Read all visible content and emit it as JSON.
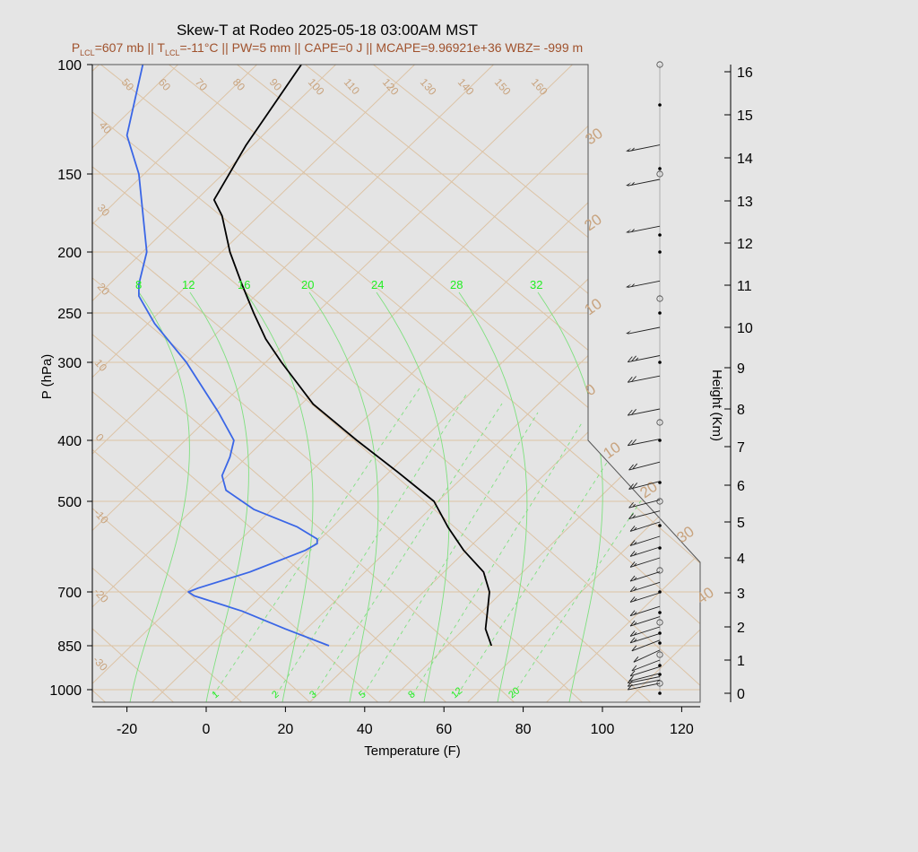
{
  "chart_data": {
    "type": "line",
    "title": "Skew-T at Rodeo 2025-05-18 03:00AM MST",
    "subtitle": {
      "p_lcl": "607 mb",
      "t_lcl": "-11°C",
      "pw": "5 mm",
      "cape": "0 J",
      "mcape": "9.96921e+36",
      "wbz": "-999 m"
    },
    "xlabel": "Temperature (F)",
    "ylabel": "P (hPa)",
    "y2label": "Height (Km)",
    "x_ticks": [
      -20,
      0,
      20,
      40,
      60,
      80,
      100,
      120
    ],
    "p_ticks": [
      100,
      150,
      200,
      250,
      300,
      400,
      500,
      700,
      850,
      1000
    ],
    "height_ticks": [
      0,
      1,
      2,
      3,
      4,
      5,
      6,
      7,
      8,
      9,
      10,
      11,
      12,
      13,
      14,
      15,
      16
    ],
    "isotherm_labels": [
      "50",
      "60",
      "70",
      "80",
      "90",
      "100",
      "110",
      "120",
      "130",
      "140",
      "150",
      "160"
    ],
    "left_labels": [
      "40",
      "30",
      "20",
      "10",
      "0",
      "-10",
      "-20",
      "-30"
    ],
    "adiabat_labels": [
      "30",
      "20",
      "10",
      "0",
      "10",
      "20",
      "30",
      "40"
    ],
    "mixing_ratio_top": [
      "8",
      "12",
      "16",
      "20",
      "24",
      "28",
      "32"
    ],
    "mixing_ratio_bottom": [
      "1",
      "2",
      "3",
      "5",
      "8",
      "12",
      "20"
    ],
    "series": [
      {
        "name": "",
        "color": "#000000",
        "points": [
          [
            72.0,
            850
          ],
          [
            70.5,
            800
          ],
          [
            71.0,
            750
          ],
          [
            71.5,
            700
          ],
          [
            70.0,
            650
          ],
          [
            65.0,
            600
          ],
          [
            61.0,
            550
          ],
          [
            57.5,
            500
          ],
          [
            48.5,
            450
          ],
          [
            38.0,
            400
          ],
          [
            27.0,
            350
          ],
          [
            19.0,
            300
          ],
          [
            15.0,
            275
          ],
          [
            12.0,
            250
          ],
          [
            9.0,
            225
          ],
          [
            6.0,
            200
          ],
          [
            4.0,
            175
          ],
          [
            2.0,
            165
          ],
          [
            10.0,
            135
          ],
          [
            24.0,
            100
          ]
        ]
      },
      {
        "name": "",
        "color": "#3a66e6",
        "points": [
          [
            31.0,
            850
          ],
          [
            20.0,
            800
          ],
          [
            9.0,
            750
          ],
          [
            -3.0,
            710
          ],
          [
            -4.5,
            700
          ],
          [
            -2.0,
            690
          ],
          [
            11.0,
            650
          ],
          [
            25.0,
            600
          ],
          [
            28.0,
            585
          ],
          [
            28.0,
            575
          ],
          [
            23.0,
            550
          ],
          [
            12.0,
            515
          ],
          [
            5.0,
            480
          ],
          [
            4.0,
            455
          ],
          [
            6.0,
            425
          ],
          [
            7.0,
            400
          ],
          [
            3.0,
            360
          ],
          [
            -5.0,
            300
          ],
          [
            -13.0,
            260
          ],
          [
            -17.0,
            235
          ],
          [
            -17.0,
            225
          ],
          [
            -15.0,
            200
          ],
          [
            -17.0,
            150
          ],
          [
            -20.0,
            130
          ],
          [
            -16.0,
            100
          ]
        ]
      }
    ],
    "wind_barbs": [
      {
        "height_km": 0.3,
        "speed": 10,
        "dir": 250
      },
      {
        "height_km": 0.4,
        "speed": 10,
        "dir": 250
      },
      {
        "height_km": 0.5,
        "speed": 10,
        "dir": 250
      },
      {
        "height_km": 0.6,
        "speed": 10,
        "dir": 245
      },
      {
        "height_km": 0.8,
        "speed": 10,
        "dir": 240
      },
      {
        "height_km": 1.0,
        "speed": 10,
        "dir": 235
      },
      {
        "height_km": 1.3,
        "speed": 10,
        "dir": 230
      },
      {
        "height_km": 1.6,
        "speed": 10,
        "dir": 235
      },
      {
        "height_km": 1.8,
        "speed": 15,
        "dir": 240
      },
      {
        "height_km": 2.0,
        "speed": 15,
        "dir": 240
      },
      {
        "height_km": 2.3,
        "speed": 15,
        "dir": 240
      },
      {
        "height_km": 2.6,
        "speed": 15,
        "dir": 240
      },
      {
        "height_km": 3.0,
        "speed": 15,
        "dir": 240
      },
      {
        "height_km": 3.3,
        "speed": 15,
        "dir": 240
      },
      {
        "height_km": 3.6,
        "speed": 15,
        "dir": 240
      },
      {
        "height_km": 4.0,
        "speed": 15,
        "dir": 240
      },
      {
        "height_km": 4.3,
        "speed": 15,
        "dir": 240
      },
      {
        "height_km": 4.6,
        "speed": 15,
        "dir": 240
      },
      {
        "height_km": 5.0,
        "speed": 15,
        "dir": 240
      },
      {
        "height_km": 5.3,
        "speed": 15,
        "dir": 245
      },
      {
        "height_km": 5.6,
        "speed": 15,
        "dir": 245
      },
      {
        "height_km": 6.1,
        "speed": 20,
        "dir": 245
      },
      {
        "height_km": 6.6,
        "speed": 20,
        "dir": 245
      },
      {
        "height_km": 7.2,
        "speed": 20,
        "dir": 250
      },
      {
        "height_km": 8.0,
        "speed": 20,
        "dir": 250
      },
      {
        "height_km": 8.8,
        "speed": 20,
        "dir": 250
      },
      {
        "height_km": 9.3,
        "speed": 25,
        "dir": 250
      },
      {
        "height_km": 10.0,
        "speed": 50,
        "dir": 250
      },
      {
        "height_km": 11.1,
        "speed": 55,
        "dir": 250
      },
      {
        "height_km": 12.4,
        "speed": 55,
        "dir": 250
      },
      {
        "height_km": 13.5,
        "speed": 55,
        "dir": 250
      },
      {
        "height_km": 14.3,
        "speed": 55,
        "dir": 250
      }
    ],
    "grid": true
  }
}
